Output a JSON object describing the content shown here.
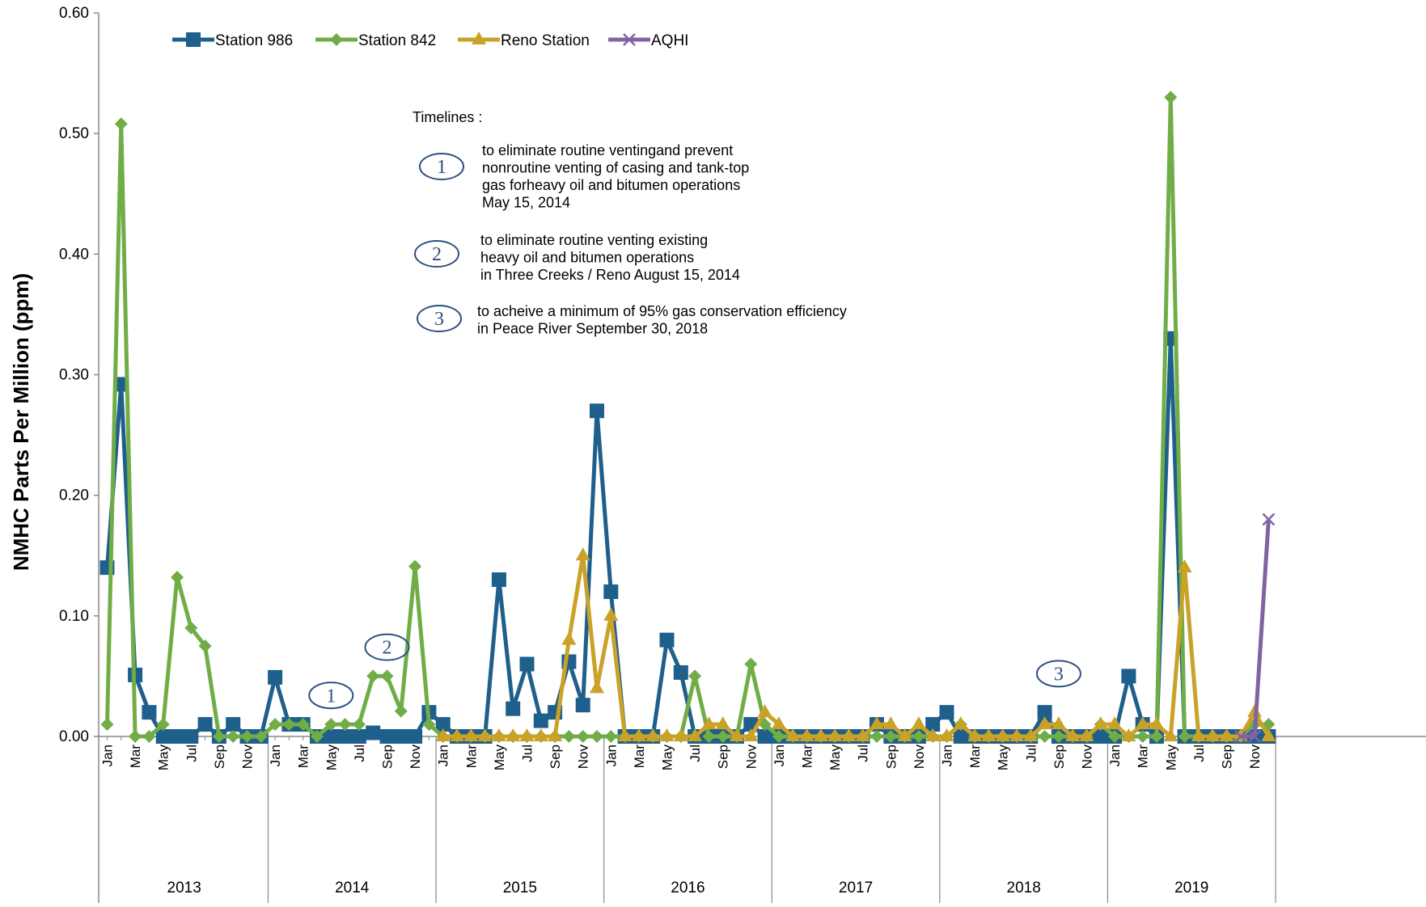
{
  "chart_data": {
    "type": "line",
    "ylabel": "NMHC Parts Per Million (ppm)",
    "ylim": [
      0,
      0.6
    ],
    "y_ticks": [
      "0.00",
      "0.10",
      "0.20",
      "0.30",
      "0.40",
      "0.50",
      "0.60"
    ],
    "years": [
      "2013",
      "2014",
      "2015",
      "2016",
      "2017",
      "2018",
      "2019"
    ],
    "month_labels": [
      "Jan",
      "Mar",
      "May",
      "Jul",
      "Sep",
      "Nov"
    ],
    "months_plotted": 84,
    "legend_position": "top-left",
    "grid": false,
    "series": [
      {
        "name": "Station 986",
        "color": "#1f5f8b",
        "marker": "square",
        "values": [
          0.14,
          0.292,
          0.051,
          0.02,
          0.0,
          0.0,
          0.0,
          0.01,
          0.0,
          0.01,
          0.0,
          0.0,
          0.049,
          0.01,
          0.01,
          0.0,
          0.0,
          0.0,
          0.0,
          0.003,
          0.0,
          0.0,
          0.0,
          0.02,
          0.01,
          0.0,
          0.0,
          0.0,
          0.13,
          0.023,
          0.06,
          0.013,
          0.02,
          0.062,
          0.026,
          0.27,
          0.12,
          0.0,
          0.0,
          0.0,
          0.08,
          0.053,
          0.0,
          0.0,
          0.0,
          0.0,
          0.01,
          0.0,
          0.0,
          0.0,
          0.0,
          0.0,
          0.0,
          0.0,
          0.0,
          0.01,
          0.0,
          0.0,
          0.0,
          0.01,
          0.02,
          0.0,
          0.0,
          0.0,
          0.0,
          0.0,
          0.0,
          0.02,
          0.0,
          0.0,
          0.0,
          0.0,
          0.0,
          0.05,
          0.01,
          0.0,
          0.33,
          0.0,
          0.0,
          0.0,
          0.0,
          0.0,
          0.0,
          0.0
        ]
      },
      {
        "name": "Station 842",
        "color": "#70ad47",
        "marker": "diamond",
        "values": [
          0.01,
          0.508,
          0.0,
          0.0,
          0.01,
          0.132,
          0.09,
          0.075,
          0.0,
          0.0,
          0.0,
          0.0,
          0.01,
          0.01,
          0.01,
          0.0,
          0.01,
          0.01,
          0.01,
          0.05,
          0.05,
          0.021,
          0.141,
          0.01,
          0.0,
          0.0,
          0.0,
          0.0,
          0.0,
          0.0,
          0.0,
          0.0,
          0.0,
          0.0,
          0.0,
          0.0,
          0.0,
          0.0,
          0.0,
          0.0,
          0.0,
          0.0,
          0.05,
          0.0,
          0.0,
          0.0,
          0.06,
          0.01,
          0.0,
          0.0,
          0.0,
          0.0,
          0.0,
          0.0,
          0.0,
          0.0,
          0.0,
          0.0,
          0.0,
          0.0,
          0.0,
          0.01,
          0.0,
          0.0,
          0.0,
          0.0,
          0.0,
          0.0,
          0.0,
          0.0,
          0.0,
          0.01,
          0.0,
          0.0,
          0.0,
          0.0,
          0.53,
          0.0,
          0.0,
          0.0,
          0.0,
          0.0,
          0.01,
          0.01
        ]
      },
      {
        "name": "Reno Station",
        "color": "#c9a227",
        "marker": "triangle",
        "values": [
          null,
          null,
          null,
          null,
          null,
          null,
          null,
          null,
          null,
          null,
          null,
          null,
          null,
          null,
          null,
          null,
          null,
          null,
          null,
          null,
          null,
          null,
          null,
          null,
          0.0,
          0.0,
          0.0,
          0.0,
          0.0,
          0.0,
          0.0,
          0.0,
          0.0,
          0.08,
          0.15,
          0.04,
          0.1,
          0.0,
          0.0,
          0.0,
          0.0,
          0.0,
          0.0,
          0.01,
          0.01,
          0.0,
          0.0,
          0.02,
          0.01,
          0.0,
          0.0,
          0.0,
          0.0,
          0.0,
          0.0,
          0.01,
          0.01,
          0.0,
          0.01,
          0.0,
          0.0,
          0.01,
          0.0,
          0.0,
          0.0,
          0.0,
          0.0,
          0.01,
          0.01,
          0.0,
          0.0,
          0.01,
          0.01,
          0.0,
          0.01,
          0.01,
          0.0,
          0.14,
          0.0,
          0.0,
          0.0,
          0.0,
          0.02,
          0.0
        ]
      },
      {
        "name": "AQHI",
        "color": "#8064a2",
        "marker": "x",
        "values": [
          null,
          null,
          null,
          null,
          null,
          null,
          null,
          null,
          null,
          null,
          null,
          null,
          null,
          null,
          null,
          null,
          null,
          null,
          null,
          null,
          null,
          null,
          null,
          null,
          null,
          null,
          null,
          null,
          null,
          null,
          null,
          null,
          null,
          null,
          null,
          null,
          null,
          null,
          null,
          null,
          null,
          null,
          null,
          null,
          null,
          null,
          null,
          null,
          null,
          null,
          null,
          null,
          null,
          null,
          null,
          null,
          null,
          null,
          null,
          null,
          null,
          null,
          null,
          null,
          null,
          null,
          null,
          null,
          null,
          null,
          null,
          null,
          null,
          null,
          null,
          null,
          null,
          null,
          null,
          null,
          null,
          0.0,
          0.0,
          0.18
        ]
      }
    ],
    "annotations": {
      "title": "Timelines :",
      "items": [
        {
          "marker": "1",
          "lines": [
            "to eliminate routine ventingand prevent",
            "nonroutine venting of casing and tank-top",
            "gas forheavy oil and bitumen operations",
            "May 15,  2014"
          ]
        },
        {
          "marker": "2",
          "lines": [
            "to eliminate routine venting existing",
            "heavy oil  and bitumen operations",
            "in Three Creeks / Reno August 15, 2014"
          ]
        },
        {
          "marker": "3",
          "lines": [
            "to acheive a minimum of 95% gas conservation efficiency",
            "in Peace River September 30, 2018"
          ]
        }
      ],
      "plot_markers": [
        {
          "label": "1",
          "month_index": 16,
          "value": 0.034
        },
        {
          "label": "2",
          "month_index": 20,
          "value": 0.074
        },
        {
          "label": "3",
          "month_index": 68,
          "value": 0.052
        }
      ]
    }
  }
}
